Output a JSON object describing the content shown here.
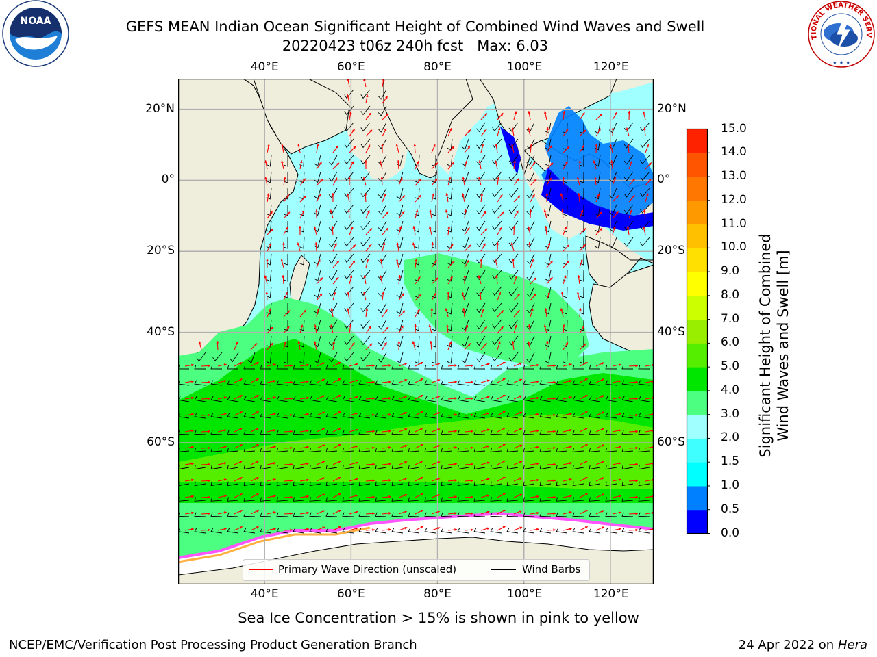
{
  "title": {
    "line1": "GEFS MEAN Indian Ocean Significant Height of Combined Wind Waves and Swell",
    "line2": "20220423 t06z 240h fcst   Max: 6.03"
  },
  "map": {
    "lon_range": [
      20,
      130
    ],
    "lat_range": [
      -75,
      28
    ],
    "lon_ticks": [
      "40°E",
      "60°E",
      "80°E",
      "100°E",
      "120°E"
    ],
    "lon_tick_values": [
      40,
      60,
      80,
      100,
      120
    ],
    "lat_ticks": [
      "20°N",
      "0°",
      "20°S",
      "40°S",
      "60°S"
    ],
    "lat_tick_values": [
      20,
      0,
      -20,
      -40,
      -60
    ],
    "grid": true,
    "colors": {
      "land": "#efeedd",
      "sea_ice": "#ffffff",
      "ice_edge": [
        "#ff55ff",
        "#ffb040",
        "#ffe080"
      ],
      "wave_arrow": "#ff0000",
      "wind_barb": "#000000",
      "coast": "#000000"
    }
  },
  "colorbar": {
    "label_line1": "Significant Height of Combined",
    "label_line2": "Wind Waves and Swell [m]",
    "ticks": [
      "0.0",
      "0.5",
      "1.0",
      "1.5",
      "2.0",
      "3.0",
      "4.0",
      "5.0",
      "6.0",
      "7.0",
      "8.0",
      "9.0",
      "10.0",
      "11.0",
      "12.0",
      "13.0",
      "14.0",
      "15.0"
    ],
    "colors": [
      "#0000ff",
      "#0080ff",
      "#00ffff",
      "#40ffff",
      "#a0ffff",
      "#4cff80",
      "#00e600",
      "#55ee00",
      "#99ee00",
      "#ccff00",
      "#ffff00",
      "#ffe000",
      "#ffc000",
      "#ff9900",
      "#ff7700",
      "#ff5500",
      "#ff2200",
      "#ff0000"
    ]
  },
  "legend": {
    "wave_label": "Primary Wave Direction (unscaled)",
    "wind_label": "Wind Barbs"
  },
  "caption": "Sea Ice Concentration > 15% is shown in pink to yellow",
  "footer": {
    "left": "NCEP/EMC/Verification Post Processing Product Generation Branch",
    "right_date": "24 Apr 2022 on",
    "right_host": "Hera"
  },
  "logos": {
    "noaa_text": "NOAA",
    "nws_text": "NATIONAL WEATHER SERVICE"
  }
}
